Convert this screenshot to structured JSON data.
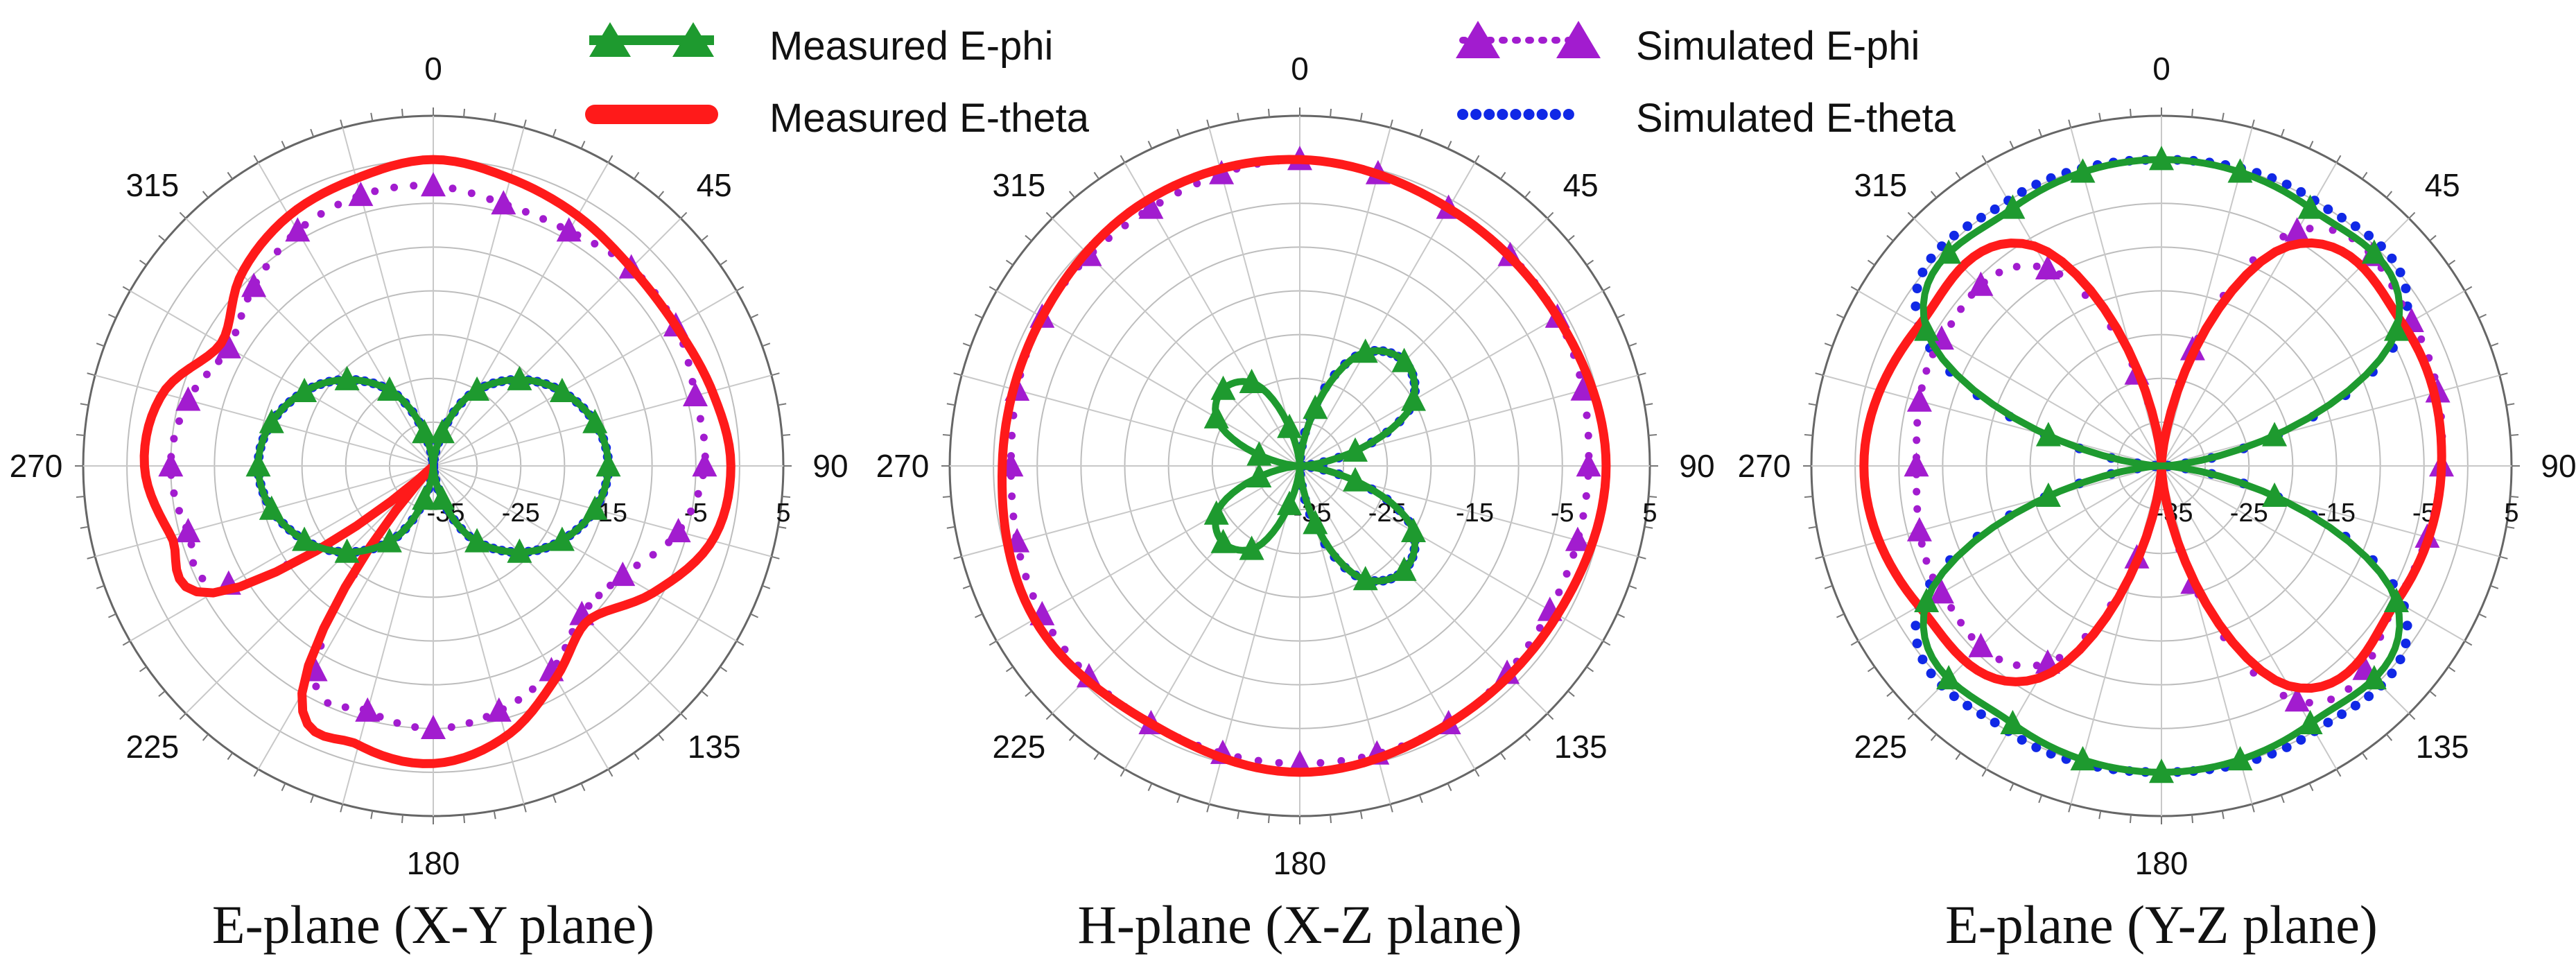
{
  "legend": [
    {
      "key": "measured_ephi",
      "label": "Measured E-phi",
      "color": "#1e9a2f",
      "style": "triangle-line"
    },
    {
      "key": "measured_etheta",
      "label": "Measured E-theta",
      "color": "#ff1a1a",
      "style": "thick-line"
    },
    {
      "key": "simulated_ephi",
      "label": "Simulated E-phi",
      "color": "#a21ccf",
      "style": "triangle-dots"
    },
    {
      "key": "simulated_etheta",
      "label": "Simulated E-theta",
      "color": "#1028e6",
      "style": "dots"
    }
  ],
  "chart_data": [
    {
      "type": "polar",
      "title": "E-plane (X-Y plane)",
      "angle_ticks": [
        "0",
        "45",
        "90",
        "135",
        "180",
        "225",
        "270",
        "315"
      ],
      "radial_ticks": [
        "-35",
        "-25",
        "-15",
        "-5",
        "5"
      ],
      "rlim": [
        -35,
        5
      ],
      "series": {
        "measured_etheta": {
          "angles": [
            0,
            15,
            30,
            45,
            60,
            75,
            90,
            105,
            120,
            135,
            150,
            165,
            180,
            195,
            210,
            225,
            240,
            255,
            270,
            285,
            300,
            315,
            330,
            345
          ],
          "values": [
            0,
            -1,
            -2,
            -3,
            -3,
            -2,
            -1,
            -2,
            -6,
            -10,
            -7,
            -3,
            -1,
            -2,
            -5,
            -35,
            -6,
            -4,
            -2,
            -3,
            -7,
            -4,
            -2,
            -1
          ]
        },
        "simulated_ephi": {
          "angles": [
            0,
            15,
            30,
            45,
            60,
            75,
            90,
            105,
            120,
            135,
            150,
            165,
            180,
            195,
            210,
            225,
            240,
            255,
            270,
            285,
            300,
            315,
            330,
            345
          ],
          "values": [
            -3,
            -4,
            -4,
            -3,
            -3,
            -4,
            -4,
            -6,
            -10,
            -11,
            -8,
            -6,
            -5,
            -6,
            -8,
            -35,
            -8,
            -6,
            -5,
            -6,
            -8,
            -6,
            -4,
            -3
          ]
        },
        "measured_ephi": {
          "angles": [
            0,
            30,
            60,
            90,
            120,
            150,
            180,
            210,
            240,
            270,
            300,
            330
          ],
          "values": [
            -35,
            -25,
            -18,
            -15,
            -18,
            -25,
            -35,
            -25,
            -18,
            -15,
            -18,
            -25
          ]
        },
        "simulated_etheta": {
          "angles": [
            0,
            30,
            60,
            90,
            120,
            150,
            180,
            210,
            240,
            270,
            300,
            330
          ],
          "values": [
            -35,
            -25,
            -18,
            -15,
            -18,
            -25,
            -35,
            -25,
            -18,
            -15,
            -18,
            -25
          ]
        }
      }
    },
    {
      "type": "polar",
      "title": "H-plane (X-Z plane)",
      "angle_ticks": [
        "0",
        "45",
        "90",
        "135",
        "180",
        "225",
        "270",
        "315"
      ],
      "radial_ticks": [
        "-35",
        "-25",
        "-15",
        "-5",
        "5"
      ],
      "rlim": [
        -35,
        5
      ],
      "series": {
        "measured_etheta": {
          "angles": [
            0,
            30,
            60,
            90,
            120,
            150,
            180,
            210,
            240,
            270,
            300,
            330
          ],
          "values": [
            0,
            -1,
            -1,
            0,
            -1,
            -1,
            0,
            -1,
            0,
            -1,
            -1,
            0
          ]
        },
        "simulated_ephi": {
          "angles": [
            0,
            30,
            60,
            90,
            120,
            150,
            180,
            210,
            240,
            270,
            300,
            330
          ],
          "values": [
            0,
            -1,
            -1,
            -2,
            -2,
            -1,
            -1,
            -1,
            -1,
            -2,
            -1,
            -1
          ]
        },
        "measured_ephi": {
          "angles": [
            0,
            30,
            60,
            90,
            120,
            150,
            180,
            210,
            240,
            270,
            300,
            330
          ],
          "values": [
            -35,
            -20,
            -20,
            -35,
            -20,
            -20,
            -35,
            -24,
            -24,
            -35,
            -24,
            -24
          ]
        },
        "simulated_etheta": {
          "angles": [
            0,
            30,
            60,
            90,
            120,
            150,
            180,
            210,
            240,
            270,
            300,
            330
          ],
          "values": [
            -35,
            -20,
            -20,
            -35,
            -20,
            -20,
            -35,
            -35,
            -35,
            -35,
            -35,
            -35
          ]
        }
      }
    },
    {
      "type": "polar",
      "title": "E-plane (Y-Z plane)",
      "angle_ticks": [
        "0",
        "45",
        "90",
        "135",
        "180",
        "225",
        "270",
        "315"
      ],
      "radial_ticks": [
        "-35",
        "-25",
        "-15",
        "-5",
        "5"
      ],
      "rlim": [
        -35,
        5
      ],
      "series": {
        "measured_etheta": {
          "angles": [
            0,
            30,
            60,
            90,
            120,
            150,
            180,
            210,
            240,
            270,
            300,
            330
          ],
          "values": [
            -35,
            -6,
            -3,
            -3,
            -4,
            -6,
            -35,
            -7,
            -3,
            -1,
            -3,
            -6
          ]
        },
        "simulated_ephi": {
          "angles": [
            0,
            30,
            60,
            90,
            120,
            150,
            180,
            210,
            240,
            270,
            300,
            330
          ],
          "values": [
            -35,
            -4,
            -2,
            -3,
            -4,
            -4,
            -35,
            -9,
            -6,
            -7,
            -6,
            -9
          ]
        },
        "measured_ephi": {
          "angles": [
            0,
            30,
            60,
            90,
            120,
            150,
            180,
            210,
            240,
            270,
            300,
            330
          ],
          "values": [
            0,
            -1,
            -4,
            -35,
            -4,
            -1,
            0,
            -1,
            -4,
            -35,
            -4,
            -1
          ]
        },
        "simulated_etheta": {
          "angles": [
            0,
            30,
            60,
            90,
            120,
            150,
            180,
            210,
            240,
            270,
            300,
            330
          ],
          "values": [
            0,
            0,
            -3,
            -35,
            -3,
            0,
            0,
            0,
            -3,
            -35,
            -3,
            0
          ]
        }
      }
    }
  ]
}
